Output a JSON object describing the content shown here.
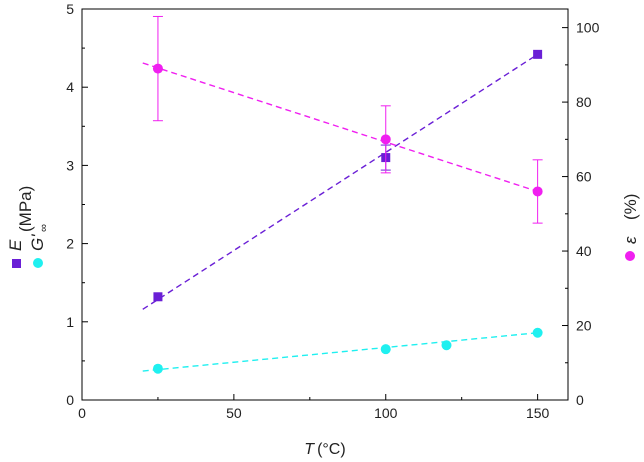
{
  "chart_data": {
    "type": "scatter",
    "xlabel": {
      "symbol": "T",
      "unit": "(°C)"
    },
    "xlim": [
      0,
      160
    ],
    "x_ticks": [
      0,
      50,
      100,
      150
    ],
    "ylim_left": [
      0,
      5
    ],
    "y_ticks_left": [
      0,
      1,
      2,
      3,
      4,
      5
    ],
    "ylim_right": [
      0,
      105
    ],
    "y_ticks_right": [
      0,
      20,
      40,
      60,
      80,
      100
    ],
    "ylabel_left": {
      "E_symbol": "E",
      "G_symbol": "G'",
      "G_subscript": "∞",
      "unit": "(MPa)"
    },
    "ylabel_right": {
      "symbol": "ε",
      "unit": "(%)"
    },
    "grid": false,
    "series": [
      {
        "key": "E",
        "axis": "left",
        "marker": "square",
        "color": "#6a1fd6",
        "x": [
          25,
          100,
          150
        ],
        "y": [
          1.32,
          3.1,
          4.42
        ],
        "yerr": [
          null,
          0.16,
          null
        ],
        "fit": {
          "x": [
            20,
            150
          ],
          "y": [
            1.16,
            4.42
          ]
        }
      },
      {
        "key": "G_inf",
        "axis": "left",
        "marker": "circle",
        "color": "#1ff0f0",
        "x": [
          25,
          100,
          120,
          150
        ],
        "y": [
          0.4,
          0.65,
          0.7,
          0.86
        ],
        "yerr": [
          null,
          null,
          null,
          null
        ],
        "fit": {
          "x": [
            20,
            150
          ],
          "y": [
            0.37,
            0.86
          ]
        }
      },
      {
        "key": "epsilon",
        "axis": "right",
        "marker": "circle",
        "color": "#f01ff0",
        "x": [
          25,
          100,
          150
        ],
        "y": [
          89,
          70,
          56
        ],
        "yerr": [
          14,
          9,
          8.5
        ],
        "fit": {
          "x": [
            20,
            150
          ],
          "y": [
            90.5,
            56
          ]
        }
      }
    ]
  }
}
